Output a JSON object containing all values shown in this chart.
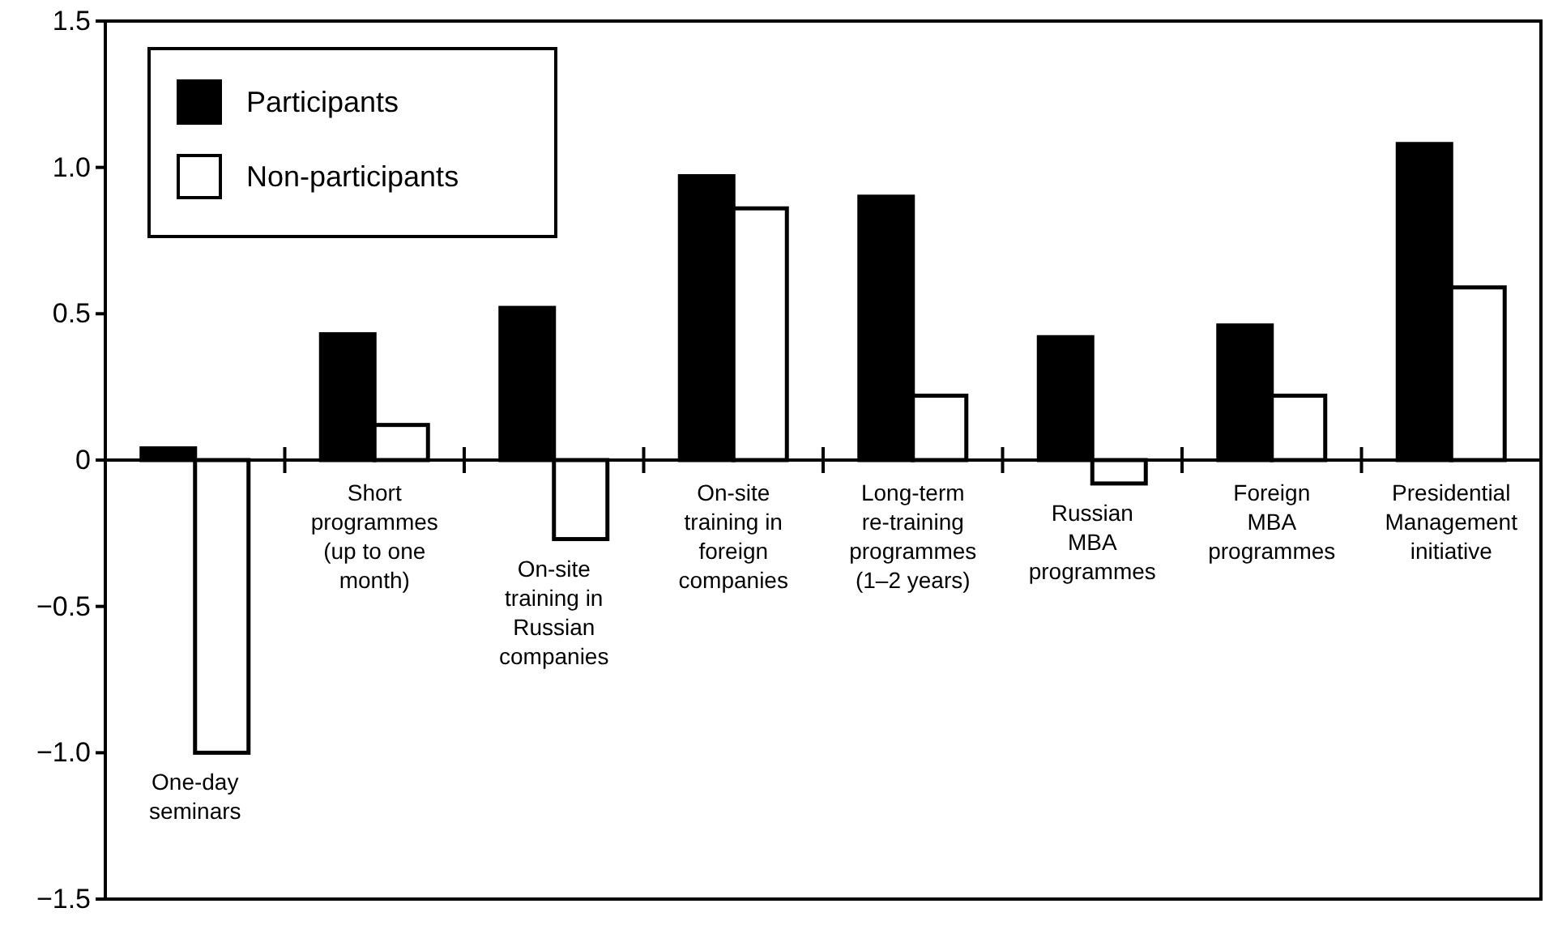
{
  "chart_data": {
    "type": "bar",
    "categories": [
      "One-day\nseminars",
      "Short\nprogrammes\n(up to one\nmonth)",
      "On-site\ntraining in\nRussian\ncompanies",
      "On-site\ntraining in\nforeign\ncompanies",
      "Long-term\nre-training\nprogrammes\n(1–2 years)",
      "Russian\nMBA\nprogrammes",
      "Foreign\nMBA\nprogrammes",
      "Presidential\nManagement\ninitiative"
    ],
    "series": [
      {
        "name": "Participants",
        "color": "#000000",
        "values": [
          0.04,
          0.43,
          0.52,
          0.97,
          0.9,
          0.42,
          0.46,
          1.08
        ]
      },
      {
        "name": "Non-participants",
        "color": "#ffffff",
        "values": [
          -1.0,
          0.12,
          -0.27,
          0.86,
          0.22,
          -0.08,
          0.22,
          0.59
        ]
      }
    ],
    "ylim": [
      -1.5,
      1.5
    ],
    "yticks": [
      {
        "value": -1.5,
        "label": "−1.5"
      },
      {
        "value": -1,
        "label": "−1.0"
      },
      {
        "value": -0.5,
        "label": "−0.5"
      },
      0,
      {
        "value": 0.5,
        "label": "0.5"
      },
      {
        "value": 1,
        "label": "1.0"
      },
      {
        "value": 1.5,
        "label": "1.5"
      }
    ],
    "legend": "top left",
    "grid": false
  }
}
